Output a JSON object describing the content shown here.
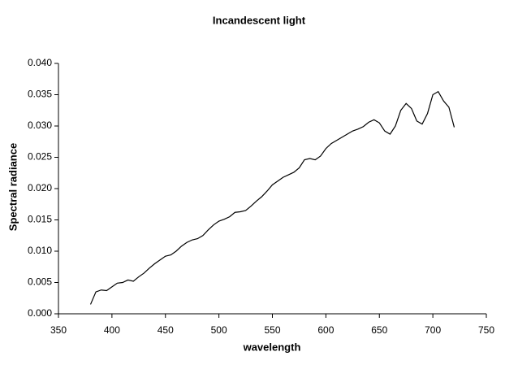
{
  "chart_data": {
    "type": "line",
    "title": "Incandescent light",
    "x_label": "wavelength",
    "y_label": "Spectral radiance",
    "x": [
      380,
      385,
      390,
      395,
      400,
      405,
      410,
      415,
      420,
      425,
      430,
      435,
      440,
      445,
      450,
      455,
      460,
      465,
      470,
      475,
      480,
      485,
      490,
      495,
      500,
      505,
      510,
      515,
      520,
      525,
      530,
      535,
      540,
      545,
      550,
      555,
      560,
      565,
      570,
      575,
      580,
      585,
      590,
      595,
      600,
      605,
      610,
      615,
      620,
      625,
      630,
      635,
      640,
      645,
      650,
      655,
      660,
      665,
      670,
      675,
      680,
      685,
      690,
      695,
      700,
      705,
      710,
      715,
      720
    ],
    "series": [
      {
        "name": "Spectral radiance",
        "color": "#000000",
        "values": [
          0.0015,
          0.0035,
          0.0038,
          0.0037,
          0.0043,
          0.0049,
          0.005,
          0.0054,
          0.0052,
          0.0059,
          0.0065,
          0.0073,
          0.008,
          0.0086,
          0.0092,
          0.0094,
          0.01,
          0.0108,
          0.0114,
          0.0118,
          0.012,
          0.0125,
          0.0134,
          0.0142,
          0.0148,
          0.0151,
          0.0155,
          0.0162,
          0.0163,
          0.0165,
          0.0172,
          0.018,
          0.0187,
          0.0196,
          0.0206,
          0.0212,
          0.0218,
          0.0222,
          0.0226,
          0.0233,
          0.0246,
          0.0248,
          0.0246,
          0.0252,
          0.0264,
          0.0272,
          0.0277,
          0.0282,
          0.0287,
          0.0292,
          0.0295,
          0.0299,
          0.0306,
          0.031,
          0.0305,
          0.0292,
          0.0287,
          0.03,
          0.0325,
          0.0336,
          0.0328,
          0.0308,
          0.0303,
          0.032,
          0.035,
          0.0355,
          0.034,
          0.033,
          0.0298
        ]
      }
    ],
    "xlim": [
      350,
      750
    ],
    "xticks": [
      350,
      400,
      450,
      500,
      550,
      600,
      650,
      700,
      750
    ],
    "ylim": [
      0,
      0.04
    ],
    "yticks": [
      {
        "value": 0,
        "label": "0.000"
      },
      {
        "value": 0.005,
        "label": "0.005"
      },
      {
        "value": 0.01,
        "label": "0.010"
      },
      {
        "value": 0.015,
        "label": "0.015"
      },
      {
        "value": 0.02,
        "label": "0.020"
      },
      {
        "value": 0.025,
        "label": "0.025"
      },
      {
        "value": 0.03,
        "label": "0.030"
      },
      {
        "value": 0.035,
        "label": "0.035"
      },
      {
        "value": 0.04,
        "label": "0.040"
      }
    ],
    "grid": false
  }
}
